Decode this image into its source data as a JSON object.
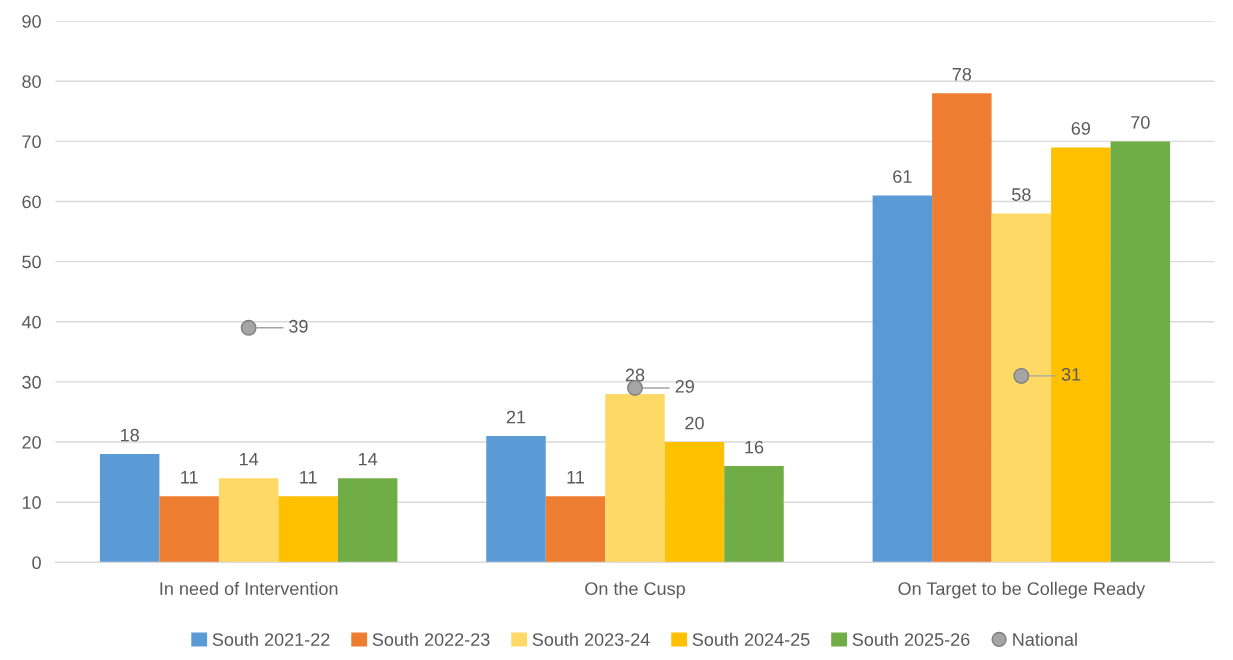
{
  "chart_data": {
    "type": "bar",
    "categories": [
      "In need of Intervention",
      "On the Cusp",
      "On Target to be College Ready"
    ],
    "series": [
      {
        "name": "South 2021-22",
        "color": "#5b9bd5",
        "values": [
          18,
          21,
          61
        ]
      },
      {
        "name": "South 2022-23",
        "color": "#ed7d31",
        "values": [
          11,
          11,
          78
        ]
      },
      {
        "name": "South 2023-24",
        "color": "#ffd966",
        "values": [
          14,
          28,
          58
        ]
      },
      {
        "name": "South 2024-25",
        "color": "#ffc000",
        "values": [
          11,
          20,
          69
        ]
      },
      {
        "name": "South 2025-26",
        "color": "#70ad47",
        "values": [
          14,
          16,
          70
        ]
      },
      {
        "name": "National",
        "type": "scatter",
        "marker": "circle",
        "color": "#a5a5a5",
        "x": [
          "In need of Intervention",
          "On the Cusp",
          "On Target to be College Ready"
        ],
        "values": [
          39,
          29,
          31
        ]
      }
    ],
    "ylim": [
      0,
      90
    ],
    "yticks": [
      0,
      10,
      20,
      30,
      40,
      50,
      60,
      70,
      80,
      90
    ],
    "grid": "y",
    "legend": "bottom",
    "data_labels": true
  }
}
